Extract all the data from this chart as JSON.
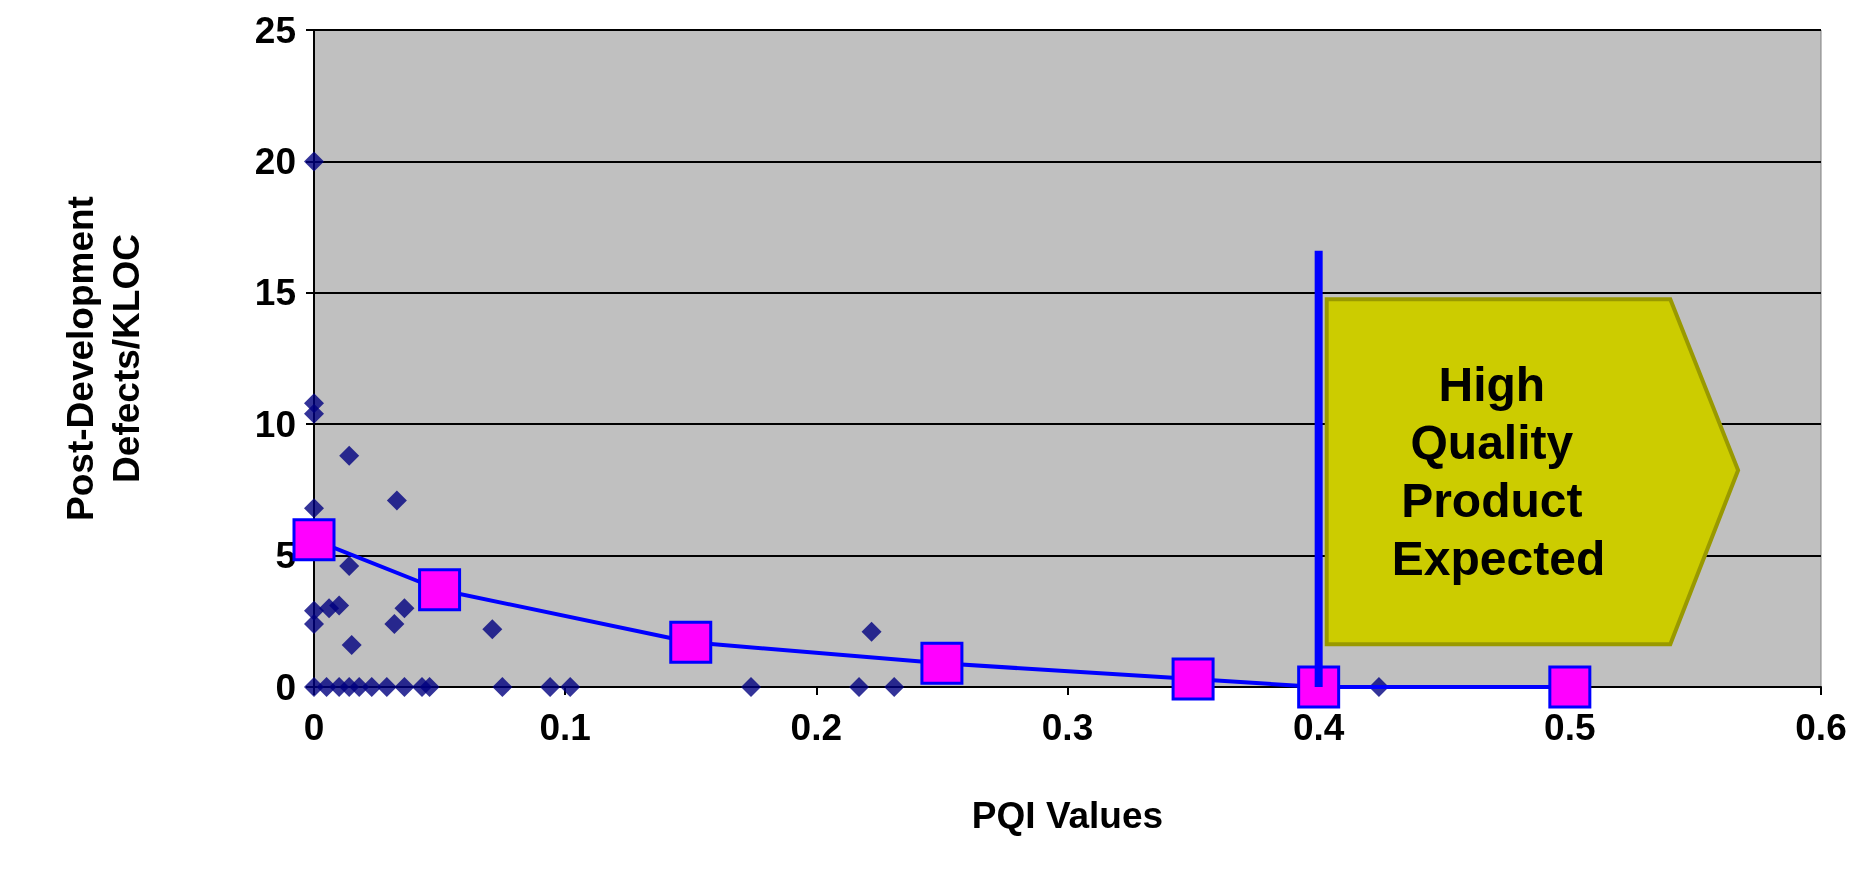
{
  "chart_data": {
    "type": "scatter",
    "xlabel": "PQI Values",
    "ylabel": "Post-Development\nDefects/KLOC",
    "xlim": [
      0,
      0.6
    ],
    "xticks": [
      0,
      0.1,
      0.2,
      0.3,
      0.4,
      0.5,
      0.6
    ],
    "ylim": [
      0,
      25
    ],
    "yticks": [
      0,
      5,
      10,
      15,
      20,
      25
    ],
    "grid": "y",
    "annotations": [
      "High Quality Product Expected"
    ],
    "series": [
      {
        "color": "#000080",
        "marker": "diamond",
        "x": [
          0,
          0,
          0,
          0,
          0,
          0,
          0.014,
          0.033,
          0.014,
          0.01,
          0.006,
          0.036,
          0.032,
          0.015,
          0.071,
          0.222,
          0,
          0.005,
          0.01,
          0.014,
          0.018,
          0.023,
          0.029,
          0.036,
          0.043,
          0.046,
          0.075,
          0.094,
          0.102,
          0.174,
          0.217,
          0.231,
          0.424
        ],
        "values": [
          20,
          10.8,
          10.4,
          6.8,
          2.9,
          2.4,
          8.8,
          7.1,
          4.6,
          3.1,
          3.0,
          3.0,
          2.4,
          1.6,
          2.2,
          2.1,
          0,
          0,
          0,
          0,
          0,
          0,
          0,
          0,
          0,
          0,
          0,
          0,
          0,
          0,
          0,
          0,
          0
        ]
      },
      {
        "type": "line",
        "color": "#0000ff",
        "marker": "square",
        "x": [
          0,
          0.05,
          0.15,
          0.25,
          0.35,
          0.4,
          0.5
        ],
        "values": [
          5.6,
          3.7,
          1.7,
          0.9,
          0.3,
          0,
          0
        ]
      },
      {
        "type": "line",
        "color": "#0000ff",
        "marker": "none",
        "x": [
          0.4,
          0.4
        ],
        "values": [
          0,
          16.6
        ]
      }
    ]
  }
}
